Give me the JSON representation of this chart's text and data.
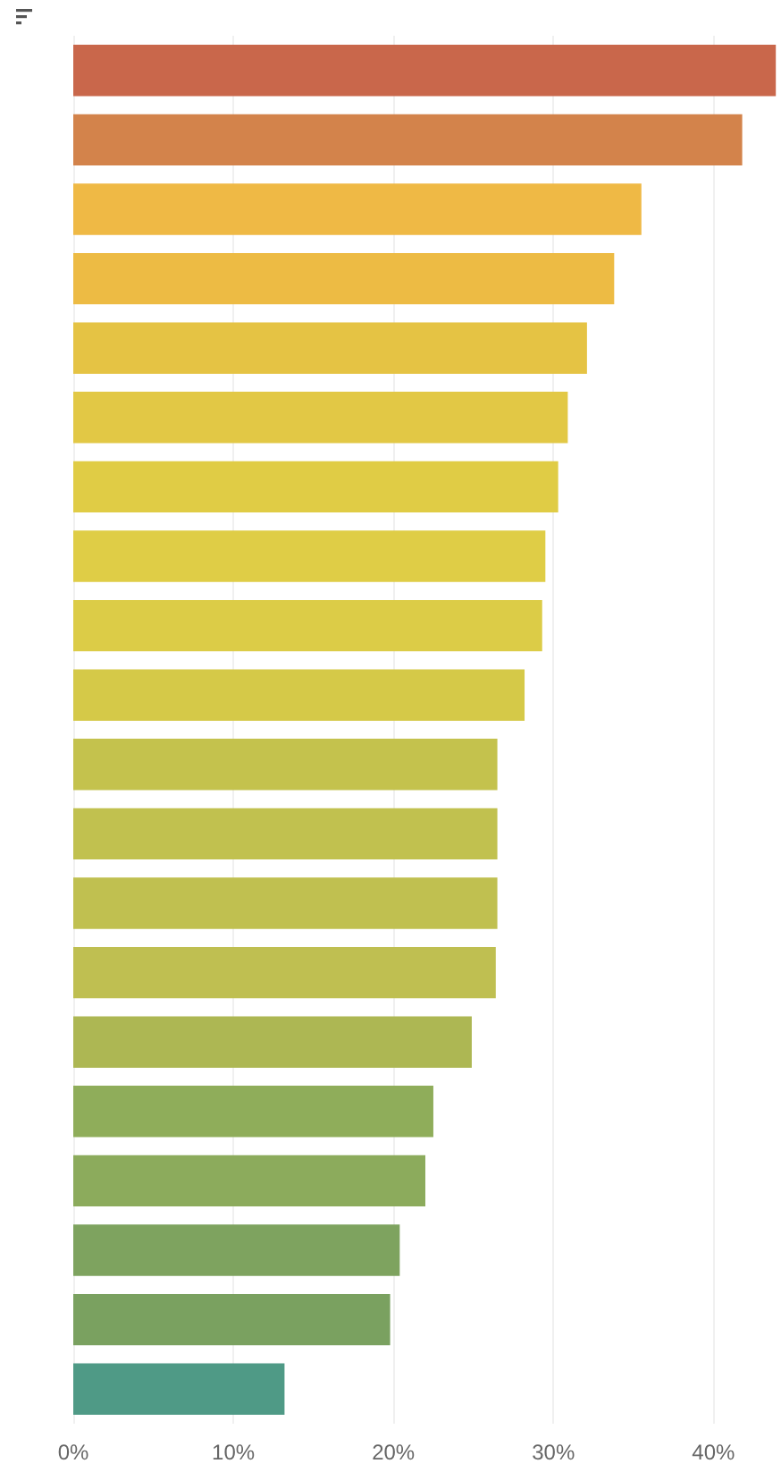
{
  "chart_data": {
    "type": "bar",
    "orientation": "horizontal",
    "categories": [
      null,
      null,
      null,
      null,
      null,
      null,
      null,
      null,
      null,
      null,
      null,
      null,
      null,
      null,
      null,
      null,
      null,
      null,
      null,
      null
    ],
    "values": [
      43.9,
      41.8,
      35.5,
      33.8,
      32.1,
      30.9,
      30.3,
      29.5,
      29.3,
      28.2,
      26.5,
      26.5,
      26.5,
      26.4,
      24.9,
      22.5,
      22.0,
      20.4,
      19.8,
      13.2
    ],
    "colors": [
      "#c9674b",
      "#d3834b",
      "#efb945",
      "#edbb44",
      "#e5c344",
      "#e2c845",
      "#e0cc45",
      "#dfcd46",
      "#dccc47",
      "#d5c948",
      "#c4c24d",
      "#c1c14f",
      "#c0c050",
      "#bfbf51",
      "#adb753",
      "#8fad5a",
      "#8cab5c",
      "#7ea35f",
      "#7aa160",
      "#4f9a86"
    ],
    "xlim": [
      0,
      44
    ],
    "xticks": [
      {
        "value": 0,
        "label": "0%"
      },
      {
        "value": 10,
        "label": "10%"
      },
      {
        "value": 20,
        "label": "20%"
      },
      {
        "value": 30,
        "label": "30%"
      },
      {
        "value": 40,
        "label": "40%"
      }
    ],
    "grid": "x"
  }
}
